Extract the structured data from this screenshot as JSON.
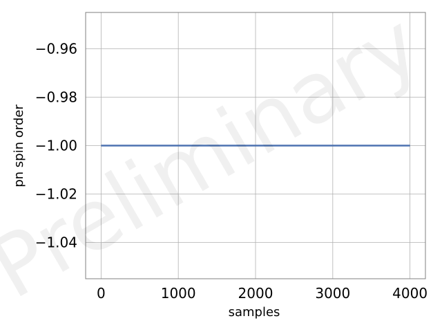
{
  "chart_data": {
    "type": "line",
    "xlabel": "samples",
    "ylabel": "pn spin order",
    "xlim": [
      -200,
      4200
    ],
    "ylim": [
      -1.055,
      -0.945
    ],
    "xticks": [
      0,
      1000,
      2000,
      3000,
      4000
    ],
    "xtick_labels": [
      "0",
      "1000",
      "2000",
      "3000",
      "4000"
    ],
    "yticks": [
      -0.96,
      -0.98,
      -1.0,
      -1.02,
      -1.04
    ],
    "ytick_labels": [
      "−0.96",
      "−0.98",
      "−1.00",
      "−1.02",
      "−1.04"
    ],
    "grid": true,
    "watermark": "Preliminary",
    "series": [
      {
        "color": "#4c72b0",
        "x": [
          0,
          4000
        ],
        "y": [
          -1.0,
          -1.0
        ]
      }
    ]
  }
}
